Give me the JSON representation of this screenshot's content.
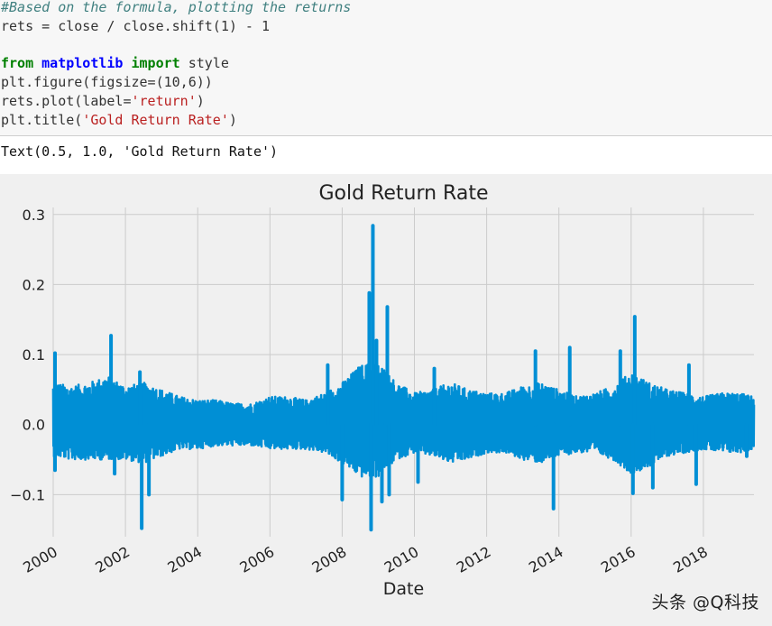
{
  "code_cell": {
    "lines": [
      [
        {
          "cls": "tok-comment",
          "text": "#Based on the formula, plotting the returns"
        }
      ],
      [
        {
          "cls": "",
          "text": "rets = close / close.shift(1) - 1"
        }
      ],
      [
        {
          "cls": "",
          "text": ""
        }
      ],
      [
        {
          "cls": "tok-kw",
          "text": "from"
        },
        {
          "cls": "",
          "text": " "
        },
        {
          "cls": "tok-mod",
          "text": "matplotlib"
        },
        {
          "cls": "",
          "text": " "
        },
        {
          "cls": "tok-kw",
          "text": "import"
        },
        {
          "cls": "",
          "text": " style"
        }
      ],
      [
        {
          "cls": "",
          "text": "plt.figure(figsize=(10,6))"
        }
      ],
      [
        {
          "cls": "",
          "text": "rets.plot(label="
        },
        {
          "cls": "tok-str",
          "text": "'return'"
        },
        {
          "cls": "",
          "text": ")"
        }
      ],
      [
        {
          "cls": "",
          "text": "plt.title("
        },
        {
          "cls": "tok-str",
          "text": "'Gold Return Rate'"
        },
        {
          "cls": "",
          "text": ")"
        }
      ]
    ]
  },
  "output": {
    "text": "Text(0.5, 1.0, 'Gold Return Rate')"
  },
  "watermark": {
    "text": "头条 @Q科技"
  },
  "colors": {
    "plot_background": "#f0f0f0",
    "grid": "#cbcbcb",
    "line": "#008fd5",
    "code_background": "#f7f7f7"
  },
  "chart_data": {
    "type": "line",
    "title": "Gold Return Rate",
    "xlabel": "Date",
    "ylabel": "",
    "xlim": [
      2000,
      2019.4
    ],
    "ylim": [
      -0.16,
      0.31
    ],
    "x_ticks": [
      2000,
      2002,
      2004,
      2006,
      2008,
      2010,
      2012,
      2014,
      2016,
      2018
    ],
    "x_tick_labels": [
      "2000",
      "2002",
      "2004",
      "2006",
      "2008",
      "2010",
      "2012",
      "2014",
      "2016",
      "2018"
    ],
    "y_ticks": [
      -0.1,
      0.0,
      0.1,
      0.2,
      0.3
    ],
    "y_tick_labels": [
      "−0.1",
      "0.0",
      "0.1",
      "0.2",
      "0.3"
    ],
    "grid": true,
    "style": "fivethirtyeight",
    "series": [
      {
        "name": "return",
        "envelope_x": [
          2000.0,
          2000.5,
          2001.0,
          2001.5,
          2002.0,
          2002.5,
          2003.0,
          2003.5,
          2004.0,
          2004.5,
          2005.0,
          2005.5,
          2006.0,
          2006.5,
          2007.0,
          2007.5,
          2008.0,
          2008.5,
          2009.0,
          2009.5,
          2010.0,
          2010.5,
          2011.0,
          2011.5,
          2012.0,
          2012.5,
          2013.0,
          2013.5,
          2014.0,
          2014.5,
          2015.0,
          2015.5,
          2016.0,
          2016.5,
          2017.0,
          2017.5,
          2018.0,
          2018.5,
          2019.0,
          2019.4
        ],
        "envelope_high": [
          0.06,
          0.055,
          0.06,
          0.07,
          0.055,
          0.06,
          0.05,
          0.04,
          0.035,
          0.035,
          0.03,
          0.03,
          0.04,
          0.04,
          0.035,
          0.045,
          0.06,
          0.085,
          0.09,
          0.06,
          0.045,
          0.05,
          0.06,
          0.05,
          0.045,
          0.045,
          0.055,
          0.06,
          0.05,
          0.04,
          0.045,
          0.055,
          0.075,
          0.06,
          0.05,
          0.045,
          0.04,
          0.045,
          0.045,
          0.04
        ],
        "envelope_low": [
          -0.045,
          -0.05,
          -0.05,
          -0.05,
          -0.05,
          -0.055,
          -0.045,
          -0.035,
          -0.035,
          -0.03,
          -0.03,
          -0.03,
          -0.035,
          -0.035,
          -0.035,
          -0.04,
          -0.055,
          -0.075,
          -0.075,
          -0.05,
          -0.04,
          -0.045,
          -0.055,
          -0.05,
          -0.04,
          -0.04,
          -0.05,
          -0.055,
          -0.045,
          -0.04,
          -0.04,
          -0.05,
          -0.07,
          -0.06,
          -0.045,
          -0.04,
          -0.035,
          -0.04,
          -0.04,
          -0.035
        ],
        "spikes": [
          {
            "x": 2000.05,
            "y": 0.102
          },
          {
            "x": 2000.05,
            "y": -0.065
          },
          {
            "x": 2001.6,
            "y": 0.127
          },
          {
            "x": 2001.7,
            "y": -0.07
          },
          {
            "x": 2002.45,
            "y": -0.148
          },
          {
            "x": 2002.65,
            "y": -0.1
          },
          {
            "x": 2002.4,
            "y": 0.075
          },
          {
            "x": 2007.6,
            "y": 0.085
          },
          {
            "x": 2008.0,
            "y": -0.107
          },
          {
            "x": 2008.75,
            "y": 0.188
          },
          {
            "x": 2008.85,
            "y": 0.284
          },
          {
            "x": 2008.8,
            "y": -0.15
          },
          {
            "x": 2008.95,
            "y": 0.12
          },
          {
            "x": 2009.25,
            "y": 0.168
          },
          {
            "x": 2009.1,
            "y": -0.11
          },
          {
            "x": 2009.3,
            "y": -0.1
          },
          {
            "x": 2010.1,
            "y": -0.082
          },
          {
            "x": 2010.55,
            "y": 0.08
          },
          {
            "x": 2013.35,
            "y": 0.105
          },
          {
            "x": 2013.85,
            "y": -0.12
          },
          {
            "x": 2014.3,
            "y": 0.11
          },
          {
            "x": 2016.1,
            "y": 0.154
          },
          {
            "x": 2016.05,
            "y": -0.098
          },
          {
            "x": 2015.7,
            "y": 0.105
          },
          {
            "x": 2016.6,
            "y": -0.09
          },
          {
            "x": 2017.6,
            "y": 0.085
          },
          {
            "x": 2017.8,
            "y": -0.085
          },
          {
            "x": 2019.2,
            "y": -0.045
          }
        ]
      }
    ]
  }
}
